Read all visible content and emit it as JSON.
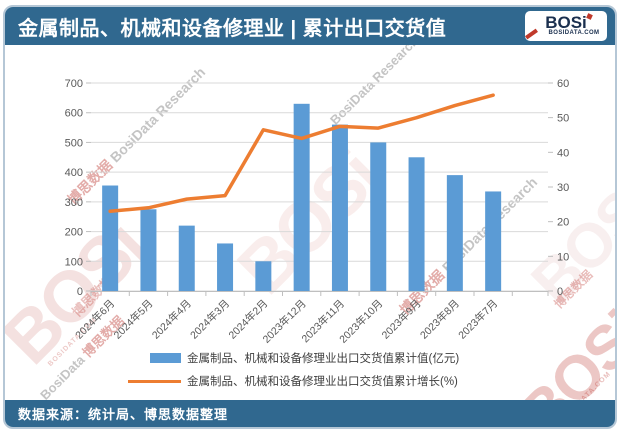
{
  "header": {
    "title": "金属制品、机械和设备修理业 | 累计出口交货值",
    "logo": {
      "brand": "BOSi",
      "site": "BOSIDATA.COM"
    }
  },
  "footer": {
    "source": "数据来源：统计局、博思数据整理"
  },
  "watermark": {
    "brand": "BOSi",
    "site": "BOSIDATA.COM",
    "cn": "博思数据",
    "en": "BosiData Research",
    "en_name": "BosiData"
  },
  "colors": {
    "header_bg": "#30688F",
    "bar": "#5B9BD5",
    "line": "#ED7D31",
    "grid": "#D9D9D9",
    "axis": "#BFBFBF",
    "axis_label": "#595959",
    "card_border": "#B5C7D6",
    "watermark_red": "#C04C46"
  },
  "chart_data": {
    "type": "bar",
    "subtype": "combo bar+line with dual y-axes, bottom legend",
    "title": "金属制品、机械和设备修理业 | 累计出口交货值",
    "categories": [
      "2024年6月",
      "2024年5月",
      "2024年4月",
      "2024年3月",
      "2024年2月",
      "2023年12月",
      "2023年11月",
      "2023年10月",
      "2023年9月",
      "2023年8月",
      "2023年7月"
    ],
    "series": [
      {
        "name": "金属制品、机械和设备修理业出口交货值累计值(亿元)",
        "type": "bar",
        "axis": "left",
        "color": "#5B9BD5",
        "values": [
          355,
          275,
          220,
          160,
          100,
          630,
          560,
          500,
          450,
          390,
          335
        ]
      },
      {
        "name": "金属制品、机械和设备修理业出口交货值累计增长(%)",
        "type": "line",
        "axis": "right",
        "color": "#ED7D31",
        "values": [
          23,
          24,
          26.5,
          27.5,
          46.5,
          44,
          47.5,
          47,
          50,
          53.5,
          56.5
        ]
      }
    ],
    "left_axis": {
      "min": 0,
      "max": 700,
      "step": 100
    },
    "right_axis": {
      "min": 0,
      "max": 60,
      "step": 10
    },
    "grid": true,
    "legend_position": "bottom"
  }
}
